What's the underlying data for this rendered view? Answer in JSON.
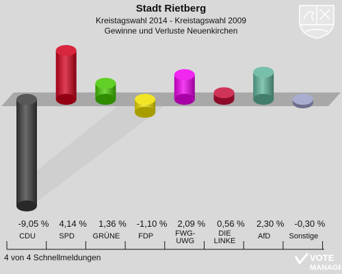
{
  "header": {
    "title": "Stadt Rietberg",
    "subtitle": "Kreistagswahl 2014 - Kreistagswahl 2009",
    "subtitle2": "Gewinne und Verluste Neuenkirchen"
  },
  "footer": {
    "note": "4 von 4 Schnellmeldungen"
  },
  "watermark": {
    "line1": "VOTE",
    "line2": "MANAGER"
  },
  "chart_data": {
    "type": "bar",
    "categories": [
      "CDU",
      "SPD",
      "GRÜNE",
      "FDP",
      "FWG-UWG",
      "DIE LINKE",
      "AfD",
      "Sonstige"
    ],
    "category_lines": [
      [
        "CDU"
      ],
      [
        "SPD"
      ],
      [
        "GRÜNE"
      ],
      [
        "FDP"
      ],
      [
        "FWG-",
        "UWG"
      ],
      [
        "DIE",
        "LINKE"
      ],
      [
        "AfD"
      ],
      [
        "Sonstige"
      ]
    ],
    "values": [
      -9.05,
      4.14,
      1.36,
      -1.1,
      2.09,
      0.56,
      2.3,
      -0.3
    ],
    "value_labels": [
      "-9,05 %",
      "4,14 %",
      "1,36 %",
      "-1,10 %",
      "2,09 %",
      "0,56 %",
      "2,30 %",
      "-0,30 %"
    ],
    "colors": [
      "#3a3a3a",
      "#d1001c",
      "#45c800",
      "#f0e000",
      "#ee00ee",
      "#c8103c",
      "#5fb49c",
      "#9aa0c8"
    ],
    "ylim": [
      -9.05,
      4.14
    ],
    "grid": false,
    "legend": "none"
  }
}
